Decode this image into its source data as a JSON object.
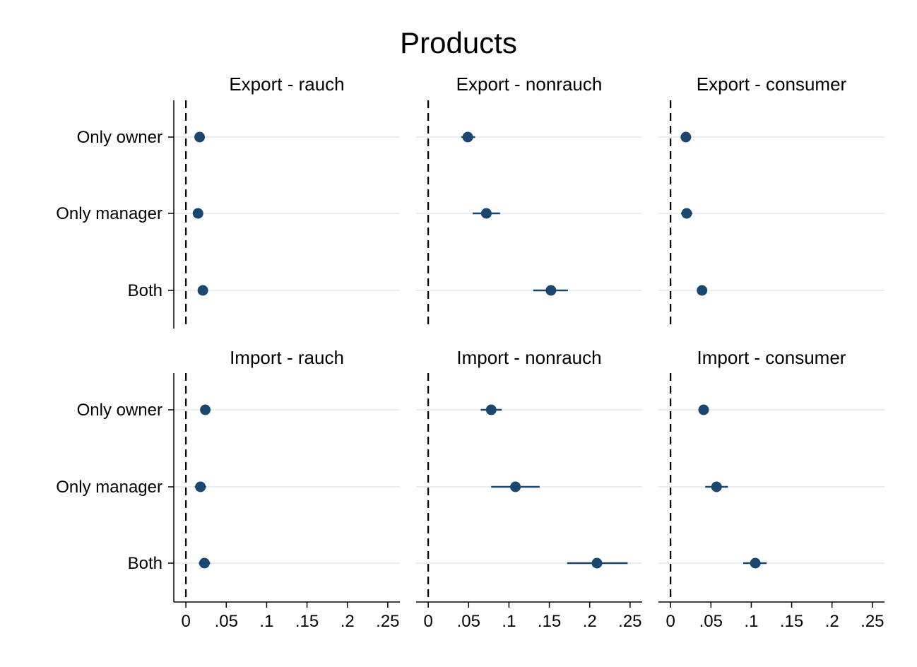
{
  "chart_data": {
    "type": "scatter",
    "title": "Products",
    "layout": "2 rows x 3 columns of coefficient plots with 95% CIs",
    "categories": [
      "Only owner",
      "Only manager",
      "Both"
    ],
    "x_ticks": [
      0,
      0.05,
      0.1,
      0.15,
      0.2,
      0.25
    ],
    "x_tick_labels": [
      "0",
      ".05",
      ".1",
      ".15",
      ".2",
      ".25"
    ],
    "xlim": [
      -0.015,
      0.265
    ],
    "reference_line": 0,
    "grid": "horizontal light lines at categories",
    "marker_color": "#1a476f",
    "panels": [
      {
        "title": "Export - rauch",
        "values": [
          0.017,
          0.015,
          0.021
        ],
        "ci_low": [
          0.014,
          0.012,
          0.018
        ],
        "ci_high": [
          0.02,
          0.018,
          0.024
        ]
      },
      {
        "title": "Export - nonrauch",
        "values": [
          0.049,
          0.072,
          0.152
        ],
        "ci_low": [
          0.041,
          0.055,
          0.13
        ],
        "ci_high": [
          0.058,
          0.089,
          0.173
        ]
      },
      {
        "title": "Export - consumer",
        "values": [
          0.019,
          0.02,
          0.039
        ],
        "ci_low": [
          0.016,
          0.013,
          0.033
        ],
        "ci_high": [
          0.022,
          0.027,
          0.045
        ]
      },
      {
        "title": "Import - rauch",
        "values": [
          0.024,
          0.018,
          0.023
        ],
        "ci_low": [
          0.021,
          0.011,
          0.016
        ],
        "ci_high": [
          0.027,
          0.025,
          0.03
        ]
      },
      {
        "title": "Import - nonrauch",
        "values": [
          0.078,
          0.108,
          0.209
        ],
        "ci_low": [
          0.065,
          0.078,
          0.172
        ],
        "ci_high": [
          0.091,
          0.138,
          0.247
        ]
      },
      {
        "title": "Import - consumer",
        "values": [
          0.041,
          0.057,
          0.105
        ],
        "ci_low": [
          0.036,
          0.043,
          0.09
        ],
        "ci_high": [
          0.046,
          0.071,
          0.119
        ]
      }
    ]
  }
}
